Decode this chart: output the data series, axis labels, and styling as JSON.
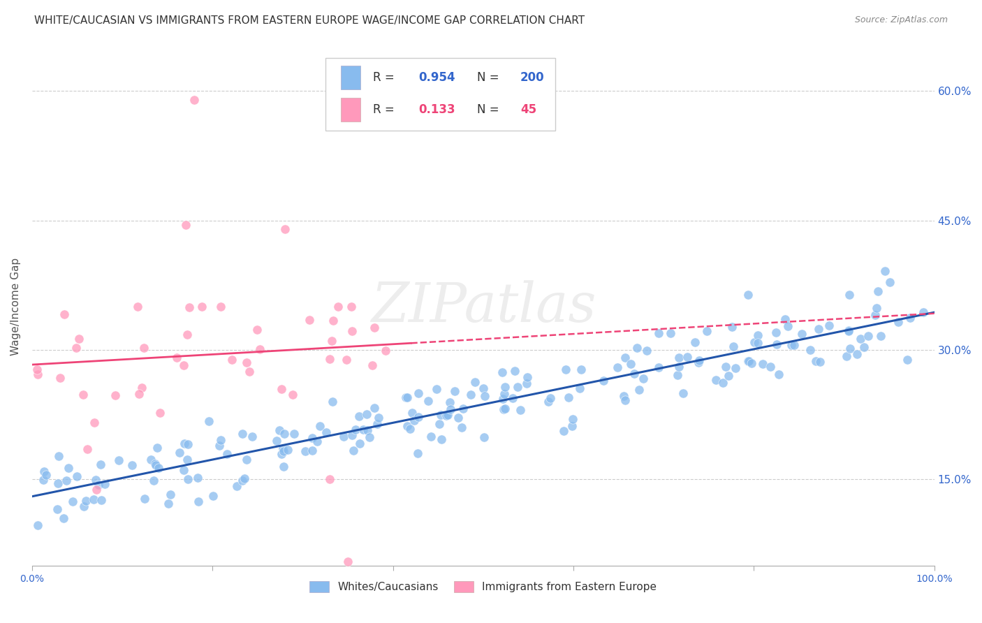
{
  "title": "WHITE/CAUCASIAN VS IMMIGRANTS FROM EASTERN EUROPE WAGE/INCOME GAP CORRELATION CHART",
  "source": "Source: ZipAtlas.com",
  "ylabel": "Wage/Income Gap",
  "xlim": [
    0,
    100
  ],
  "ylim": [
    5,
    65
  ],
  "ytick_vals": [
    15.0,
    30.0,
    45.0,
    60.0
  ],
  "right_ytick_labels": [
    "15.0%",
    "30.0%",
    "45.0%",
    "60.0%"
  ],
  "blue_color": "#88BBEE",
  "pink_color": "#FF99BB",
  "blue_line_color": "#2255AA",
  "pink_line_color": "#EE4477",
  "legend_blue_R": "0.954",
  "legend_blue_N": "200",
  "legend_pink_R": "0.133",
  "legend_pink_N": "45",
  "watermark": "ZIPatlas",
  "title_fontsize": 11,
  "source_fontsize": 9,
  "axis_label_fontsize": 10
}
